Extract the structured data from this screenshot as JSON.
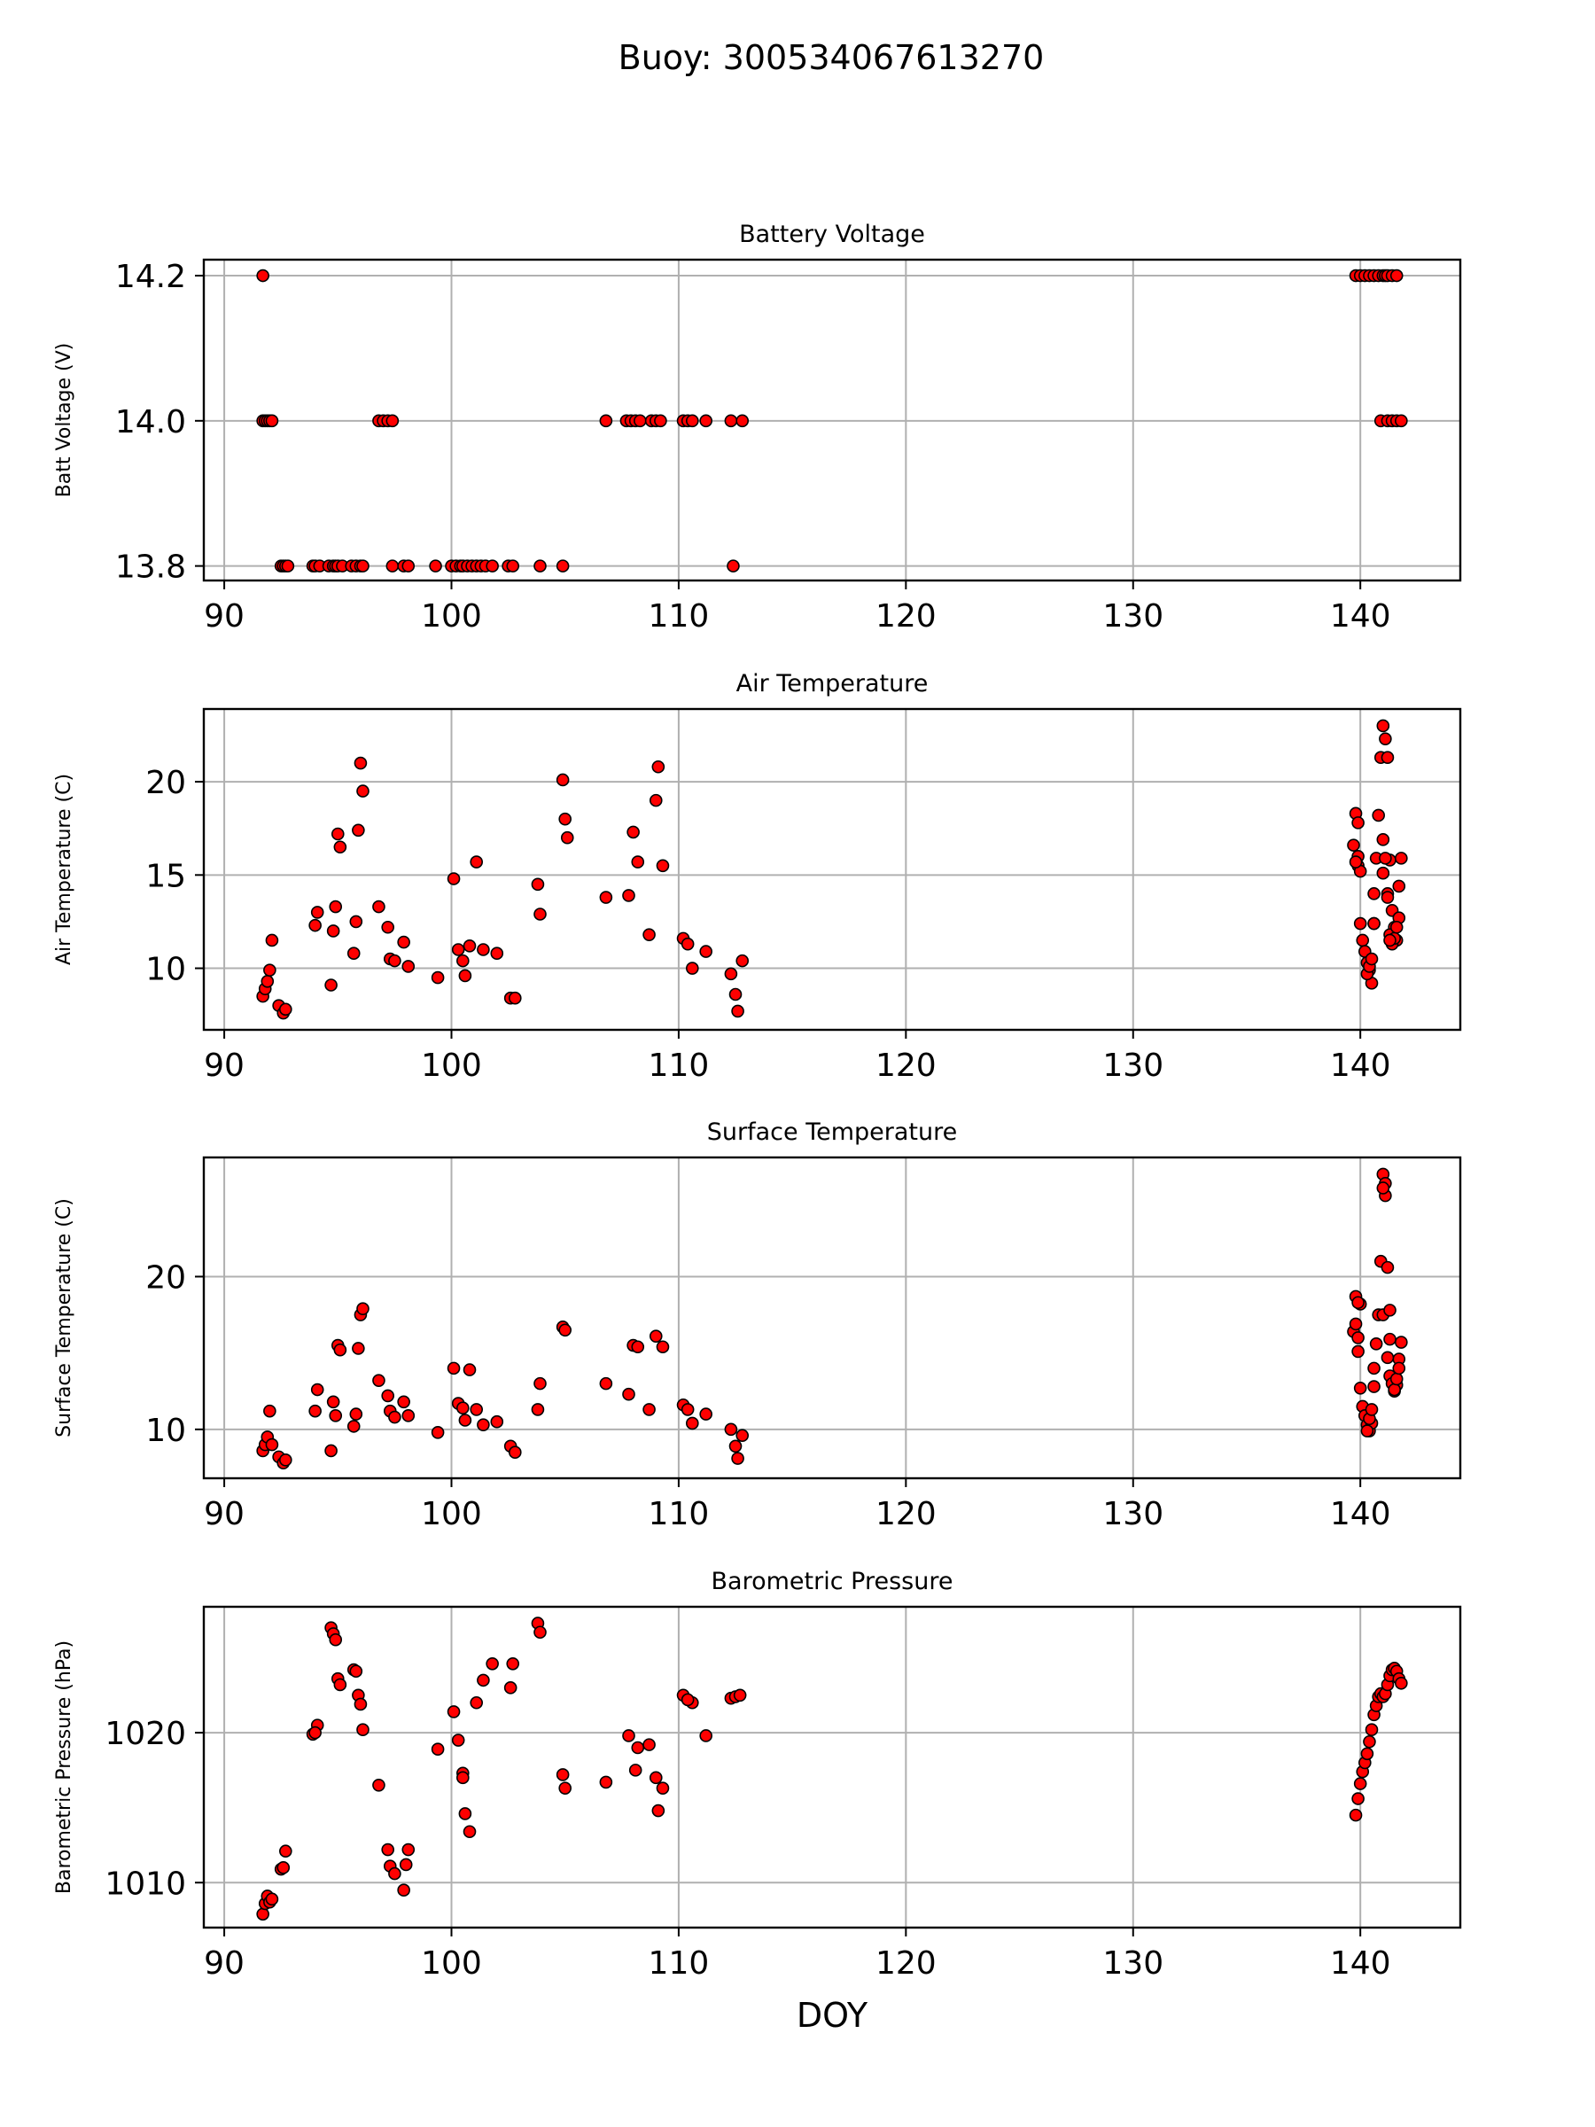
{
  "figure": {
    "suptitle": "Buoy: 300534067613270"
  },
  "chart_data": [
    {
      "type": "scatter",
      "title": "Battery Voltage",
      "xlabel": "",
      "ylabel": "Batt Voltage (V)",
      "xlim": [
        89.1,
        144.4
      ],
      "ylim": [
        13.78,
        14.222
      ],
      "xticks": [
        90,
        100,
        110,
        120,
        130,
        140
      ],
      "xtick_labels": [
        "90",
        "100",
        "110",
        "120",
        "130",
        "140"
      ],
      "yticks": [
        13.8,
        14.0,
        14.2
      ],
      "ytick_labels": [
        "13.8",
        "14.0",
        "14.2"
      ],
      "grid": true,
      "marker_color": "#ff0000",
      "marker_edge": "#000000",
      "x": [
        91.7,
        91.8,
        91.9,
        92.0,
        92.1,
        92.5,
        92.6,
        92.7,
        92.8,
        93.9,
        94.0,
        94.2,
        94.6,
        94.8,
        94.9,
        95.0,
        95.2,
        95.6,
        95.8,
        96.0,
        96.1,
        96.8,
        97.0,
        97.2,
        97.4,
        97.4,
        97.9,
        98.1,
        99.3,
        100.0,
        100.2,
        100.4,
        100.5,
        100.7,
        100.9,
        101.1,
        101.3,
        101.5,
        101.8,
        102.5,
        102.7,
        103.9,
        104.9,
        106.8,
        107.7,
        107.9,
        108.1,
        108.3,
        108.8,
        109.0,
        109.2,
        110.2,
        110.4,
        110.6,
        111.2,
        112.3,
        112.8,
        112.4,
        139.8,
        140.0,
        140.2,
        140.4,
        140.6,
        140.8,
        141.0,
        141.1,
        141.2,
        141.4,
        141.6,
        140.9,
        141.2,
        141.4,
        141.6,
        141.8,
        91.7
      ],
      "y": [
        14.0,
        14.0,
        14.0,
        14.0,
        14.0,
        13.8,
        13.8,
        13.8,
        13.8,
        13.8,
        13.8,
        13.8,
        13.8,
        13.8,
        13.8,
        13.8,
        13.8,
        13.8,
        13.8,
        13.8,
        13.8,
        14.0,
        14.0,
        14.0,
        14.0,
        13.8,
        13.8,
        13.8,
        13.8,
        13.8,
        13.8,
        13.8,
        13.8,
        13.8,
        13.8,
        13.8,
        13.8,
        13.8,
        13.8,
        13.8,
        13.8,
        13.8,
        13.8,
        14.0,
        14.0,
        14.0,
        14.0,
        14.0,
        14.0,
        14.0,
        14.0,
        14.0,
        14.0,
        14.0,
        14.0,
        14.0,
        14.0,
        13.8,
        14.2,
        14.2,
        14.2,
        14.2,
        14.2,
        14.2,
        14.2,
        14.2,
        14.2,
        14.2,
        14.2,
        14.0,
        14.0,
        14.0,
        14.0,
        14.0,
        14.2
      ]
    },
    {
      "type": "scatter",
      "title": "Air Temperature",
      "xlabel": "",
      "ylabel": "Air Temperature (C)",
      "xlim": [
        89.1,
        144.4
      ],
      "ylim": [
        6.7,
        23.9
      ],
      "xticks": [
        90,
        100,
        110,
        120,
        130,
        140
      ],
      "xtick_labels": [
        "90",
        "100",
        "110",
        "120",
        "130",
        "140"
      ],
      "yticks": [
        10,
        15,
        20
      ],
      "ytick_labels": [
        "10",
        "15",
        "20"
      ],
      "grid": true,
      "marker_color": "#ff0000",
      "marker_edge": "#000000",
      "x": [
        91.7,
        91.8,
        91.9,
        92.0,
        92.1,
        92.4,
        92.6,
        92.7,
        94.0,
        94.1,
        94.7,
        94.8,
        94.9,
        95.0,
        95.1,
        95.7,
        95.8,
        95.9,
        96.0,
        96.1,
        96.8,
        97.2,
        97.3,
        97.5,
        97.9,
        98.1,
        99.4,
        100.1,
        100.3,
        100.5,
        100.6,
        100.8,
        101.1,
        101.4,
        102.0,
        102.6,
        102.8,
        103.8,
        103.9,
        104.9,
        105.0,
        105.1,
        106.8,
        107.8,
        108.0,
        108.2,
        108.7,
        109.0,
        109.1,
        109.3,
        110.2,
        110.4,
        110.6,
        111.2,
        112.3,
        112.5,
        112.6,
        112.8,
        139.7,
        139.8,
        139.9,
        140.0,
        140.1,
        140.2,
        140.3,
        140.4,
        140.5,
        140.6,
        140.7,
        140.8,
        140.9,
        141.0,
        141.1,
        141.2,
        141.3,
        141.4,
        141.5,
        141.6,
        141.7,
        141.8,
        139.9,
        140.0,
        140.6,
        141.0,
        141.2
      ],
      "y": [
        8.5,
        8.9,
        9.3,
        9.9,
        11.5,
        8.0,
        7.6,
        7.8,
        12.3,
        13.0,
        9.1,
        12.0,
        13.3,
        17.2,
        16.5,
        10.8,
        12.5,
        17.4,
        21.0,
        19.5,
        13.3,
        12.2,
        10.5,
        10.4,
        11.4,
        10.1,
        9.5,
        14.8,
        11.0,
        10.4,
        9.6,
        11.2,
        15.7,
        11.0,
        10.8,
        8.4,
        8.4,
        14.5,
        12.9,
        20.1,
        18.0,
        17.0,
        13.8,
        13.9,
        17.3,
        15.7,
        11.8,
        19.0,
        20.8,
        15.5,
        11.6,
        11.3,
        10.0,
        10.9,
        9.7,
        8.6,
        7.7,
        10.4,
        16.6,
        18.3,
        15.5,
        12.4,
        11.5,
        10.9,
        10.3,
        9.9,
        9.2,
        12.4,
        15.9,
        18.2,
        21.3,
        23.0,
        22.3,
        21.3,
        15.8,
        13.1,
        12.2,
        11.5,
        12.7,
        15.9,
        16.0,
        15.2,
        14.0,
        16.9,
        14.0
      ],
      "x2": [
        140.3,
        140.4,
        140.5,
        140.6,
        141.0,
        141.1,
        141.3,
        141.4,
        141.5,
        141.6,
        141.7,
        141.2,
        141.3,
        139.8,
        139.9
      ],
      "y2": [
        9.7,
        10.1,
        10.5,
        12.4,
        15.1,
        15.9,
        11.8,
        11.3,
        11.6,
        12.2,
        14.4,
        13.8,
        11.5,
        15.7,
        17.8
      ]
    },
    {
      "type": "scatter",
      "title": "Surface Temperature",
      "xlabel": "",
      "ylabel": "Surface Temperature (C)",
      "xlim": [
        89.1,
        144.4
      ],
      "ylim": [
        6.8,
        27.8
      ],
      "xticks": [
        90,
        100,
        110,
        120,
        130,
        140
      ],
      "xtick_labels": [
        "90",
        "100",
        "110",
        "120",
        "130",
        "140"
      ],
      "yticks": [
        10,
        20
      ],
      "ytick_labels": [
        "10",
        "20"
      ],
      "grid": true,
      "marker_color": "#ff0000",
      "marker_edge": "#000000",
      "x": [
        91.7,
        91.8,
        91.9,
        92.0,
        92.1,
        92.4,
        92.6,
        92.7,
        94.0,
        94.1,
        94.7,
        94.8,
        94.9,
        95.0,
        95.1,
        95.7,
        95.8,
        95.9,
        96.0,
        96.1,
        96.8,
        97.2,
        97.3,
        97.5,
        97.9,
        98.1,
        99.4,
        100.1,
        100.3,
        100.5,
        100.6,
        100.8,
        101.1,
        101.4,
        102.0,
        102.6,
        102.8,
        103.8,
        103.9,
        104.9,
        105.0,
        106.8,
        107.8,
        108.0,
        108.2,
        108.7,
        109.0,
        109.3,
        110.2,
        110.4,
        110.6,
        111.2,
        112.3,
        112.5,
        112.6,
        112.8,
        139.7,
        139.8,
        139.9,
        140.0,
        140.1,
        140.2,
        140.3,
        140.4,
        140.5,
        140.6,
        140.7,
        140.8,
        140.9,
        141.0,
        141.1,
        141.2,
        141.3,
        141.4,
        141.5,
        141.6,
        141.7,
        141.8,
        139.9,
        140.0,
        140.6,
        141.0,
        141.2,
        141.3,
        141.1,
        141.0
      ],
      "y": [
        8.6,
        9.0,
        9.5,
        11.2,
        9.0,
        8.2,
        7.8,
        8.0,
        11.2,
        12.6,
        8.6,
        11.8,
        10.9,
        15.5,
        15.2,
        10.2,
        11.0,
        15.3,
        17.5,
        17.9,
        13.2,
        12.2,
        11.2,
        10.8,
        11.8,
        10.9,
        9.8,
        14.0,
        11.7,
        11.4,
        10.6,
        13.9,
        11.3,
        10.3,
        10.5,
        8.9,
        8.5,
        11.3,
        13.0,
        16.7,
        16.5,
        13.0,
        12.3,
        15.5,
        15.4,
        11.3,
        16.1,
        15.4,
        11.6,
        11.3,
        10.4,
        11.0,
        10.0,
        8.9,
        8.1,
        9.6,
        16.4,
        18.7,
        15.1,
        12.7,
        11.5,
        10.9,
        10.3,
        9.9,
        10.4,
        12.8,
        15.6,
        17.5,
        21.0,
        26.7,
        25.3,
        20.6,
        15.9,
        13.2,
        12.5,
        12.9,
        14.6,
        15.7,
        16.0,
        18.2,
        14.0,
        17.5,
        14.7,
        17.8,
        26.1,
        25.8
      ],
      "x2": [
        140.3,
        140.4,
        140.5,
        141.3,
        141.4,
        141.5,
        141.6,
        141.7,
        139.8,
        139.9
      ],
      "y2": [
        9.9,
        10.7,
        11.3,
        13.5,
        13.0,
        12.6,
        13.3,
        14.0,
        16.9,
        18.3
      ]
    },
    {
      "type": "scatter",
      "title": "Barometric Pressure",
      "xlabel": "DOY",
      "ylabel": "Barometric Pressure (hPa)",
      "xlim": [
        89.1,
        144.4
      ],
      "ylim": [
        1007.0,
        1028.4
      ],
      "xticks": [
        90,
        100,
        110,
        120,
        130,
        140
      ],
      "xtick_labels": [
        "90",
        "100",
        "110",
        "120",
        "130",
        "140"
      ],
      "yticks": [
        1010,
        1020
      ],
      "ytick_labels": [
        "1010",
        "1020"
      ],
      "grid": true,
      "marker_color": "#ff0000",
      "marker_edge": "#000000",
      "x": [
        91.7,
        91.8,
        91.9,
        92.0,
        92.1,
        92.5,
        92.6,
        92.7,
        93.9,
        94.1,
        94.7,
        94.8,
        94.9,
        95.0,
        95.1,
        95.7,
        95.8,
        95.9,
        96.0,
        96.1,
        96.8,
        97.2,
        97.3,
        97.5,
        97.9,
        98.1,
        99.4,
        100.1,
        100.3,
        100.5,
        100.6,
        100.8,
        101.1,
        101.4,
        101.8,
        102.6,
        102.7,
        103.8,
        103.9,
        104.9,
        105.0,
        106.8,
        107.8,
        108.1,
        108.2,
        108.7,
        109.0,
        109.1,
        109.3,
        110.2,
        110.4,
        110.6,
        111.2,
        112.3,
        112.5,
        112.7
      ],
      "y": [
        1007.9,
        1008.6,
        1009.1,
        1008.7,
        1008.9,
        1010.9,
        1011.0,
        1012.1,
        1019.9,
        1020.5,
        1027.0,
        1026.6,
        1026.2,
        1023.6,
        1023.2,
        1024.2,
        1024.1,
        1022.5,
        1021.9,
        1020.2,
        1016.5,
        1012.2,
        1011.1,
        1010.6,
        1009.5,
        1012.2,
        1018.9,
        1021.4,
        1019.5,
        1017.3,
        1014.6,
        1013.4,
        1022.0,
        1023.5,
        1024.6,
        1023.0,
        1024.6,
        1027.3,
        1026.7,
        1017.2,
        1016.3,
        1016.7,
        1019.8,
        1017.5,
        1019.0,
        1019.2,
        1017.0,
        1014.8,
        1016.3,
        1022.5,
        1022.2,
        1022.0,
        1019.8,
        1022.3,
        1022.4,
        1022.5
      ],
      "x2": [
        139.8,
        139.9,
        140.0,
        140.1,
        140.2,
        140.3,
        140.4,
        140.5,
        140.6,
        140.7,
        140.8,
        140.9,
        141.0,
        141.1,
        141.2,
        141.3,
        141.4,
        141.5,
        141.6,
        141.7,
        141.8,
        98.0,
        110.4,
        100.5,
        94.0
      ],
      "y2": [
        1014.5,
        1015.6,
        1016.6,
        1017.4,
        1018.0,
        1018.6,
        1019.4,
        1020.2,
        1021.2,
        1021.8,
        1022.4,
        1022.6,
        1022.4,
        1022.6,
        1023.2,
        1023.8,
        1024.2,
        1024.3,
        1024.1,
        1023.6,
        1023.3,
        1011.2,
        1022.2,
        1017.0,
        1020.0
      ]
    }
  ]
}
